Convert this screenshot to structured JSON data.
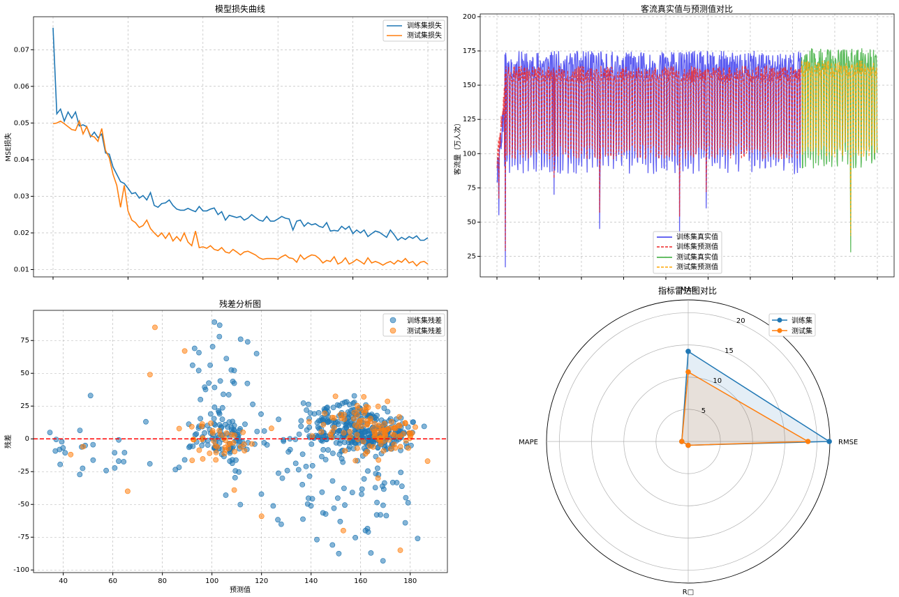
{
  "chart_data": [
    {
      "type": "line",
      "title": "模型损失曲线",
      "xlabel": "",
      "ylabel": "MSE损失",
      "xlim": [
        0,
        100
      ],
      "ylim": [
        0.008,
        0.079
      ],
      "x_ticks": [
        0,
        20,
        40,
        60,
        80,
        100
      ],
      "y_ticks": [
        0.01,
        0.02,
        0.03,
        0.04,
        0.05,
        0.06,
        0.07
      ],
      "y_tick_labels": [
        "0.01",
        "0.02",
        "0.03",
        "0.04",
        "0.05",
        "0.06",
        "0.07"
      ],
      "grid": true,
      "legend_position": "top-right",
      "series": [
        {
          "name": "训练集损失",
          "color": "#1f77b4",
          "values": [
            0.076,
            0.0525,
            0.0538,
            0.0505,
            0.053,
            0.0513,
            0.053,
            0.0492,
            0.0495,
            0.049,
            0.0462,
            0.0475,
            0.046,
            0.047,
            0.0418,
            0.0415,
            0.038,
            0.036,
            0.034,
            0.0335,
            0.0322,
            0.0307,
            0.031,
            0.0295,
            0.0302,
            0.029,
            0.031,
            0.0275,
            0.027,
            0.028,
            0.0282,
            0.029,
            0.0275,
            0.0265,
            0.0262,
            0.0262,
            0.0267,
            0.0262,
            0.0258,
            0.0272,
            0.026,
            0.026,
            0.0265,
            0.0268,
            0.025,
            0.0258,
            0.0235,
            0.0248,
            0.0245,
            0.0242,
            0.0245,
            0.0235,
            0.024,
            0.025,
            0.0242,
            0.0235,
            0.0232,
            0.0245,
            0.0232,
            0.0232,
            0.0238,
            0.0245,
            0.024,
            0.0238,
            0.0208,
            0.0232,
            0.0235,
            0.0218,
            0.0228,
            0.0222,
            0.0225,
            0.0218,
            0.0215,
            0.0228,
            0.0205,
            0.0207,
            0.0205,
            0.0218,
            0.021,
            0.0218,
            0.0198,
            0.0208,
            0.02,
            0.0208,
            0.019,
            0.0198,
            0.0205,
            0.0202,
            0.0195,
            0.0188,
            0.0208,
            0.0195,
            0.018,
            0.0188,
            0.0182,
            0.019,
            0.0185,
            0.0192,
            0.018,
            0.018,
            0.0187
          ]
        },
        {
          "name": "测试集损失",
          "color": "#ff7f0e",
          "values": [
            0.0498,
            0.05,
            0.0505,
            0.0498,
            0.049,
            0.0482,
            0.048,
            0.0505,
            0.047,
            0.049,
            0.0465,
            0.0462,
            0.045,
            0.0485,
            0.0425,
            0.0405,
            0.036,
            0.033,
            0.027,
            0.033,
            0.026,
            0.0235,
            0.0228,
            0.0215,
            0.022,
            0.0235,
            0.0212,
            0.02,
            0.019,
            0.02,
            0.0185,
            0.02,
            0.0178,
            0.019,
            0.0178,
            0.02,
            0.0175,
            0.0165,
            0.0205,
            0.016,
            0.0162,
            0.0158,
            0.0165,
            0.0155,
            0.0152,
            0.016,
            0.0148,
            0.0145,
            0.0155,
            0.0148,
            0.014,
            0.0148,
            0.015,
            0.0145,
            0.014,
            0.0132,
            0.0128,
            0.013,
            0.013,
            0.013,
            0.0128,
            0.0135,
            0.014,
            0.0132,
            0.013,
            0.012,
            0.014,
            0.0128,
            0.0135,
            0.014,
            0.0138,
            0.013,
            0.0118,
            0.0125,
            0.0122,
            0.0135,
            0.0115,
            0.012,
            0.0132,
            0.0115,
            0.012,
            0.0128,
            0.0122,
            0.0115,
            0.0132,
            0.0118,
            0.0122,
            0.0118,
            0.0112,
            0.0118,
            0.0122,
            0.0115,
            0.0125,
            0.012,
            0.013,
            0.0118,
            0.0122,
            0.011,
            0.012,
            0.0122,
            0.0115
          ]
        }
      ]
    },
    {
      "type": "line",
      "title": "客流真实值与预测值对比",
      "xlabel": "",
      "ylabel": "客流量（万人次）",
      "xlim": [
        0,
        1000
      ],
      "ylim": [
        10,
        202
      ],
      "y_ticks": [
        25,
        50,
        75,
        100,
        125,
        150,
        175,
        200
      ],
      "x_ticks": [
        0,
        111,
        222,
        333,
        444,
        555,
        666,
        777,
        888,
        1000
      ],
      "grid": true,
      "legend_position": "bottom-center",
      "train_end_index": 800,
      "series": [
        {
          "name": "训练集真实值",
          "color": "#3333ee",
          "style": "solid",
          "span": "train",
          "seed": 11,
          "high": 165,
          "low": 95,
          "noise": 10
        },
        {
          "name": "训练集预测值",
          "color": "#ee2222",
          "style": "dashed",
          "span": "train",
          "seed": 23,
          "high": 158,
          "low": 102,
          "noise": 6
        },
        {
          "name": "测试集真实值",
          "color": "#33aa33",
          "style": "solid",
          "span": "test",
          "seed": 37,
          "high": 168,
          "low": 98,
          "noise": 9
        },
        {
          "name": "测试集预测值",
          "color": "#ffa500",
          "style": "dashed",
          "span": "test",
          "seed": 41,
          "high": 162,
          "low": 103,
          "noise": 6
        }
      ],
      "events": [
        {
          "index": 5,
          "value": 55
        },
        {
          "index": 22,
          "value": 17
        },
        {
          "index": 150,
          "value": 70
        },
        {
          "index": 270,
          "value": 45
        },
        {
          "index": 480,
          "value": 42
        },
        {
          "index": 550,
          "value": 60
        },
        {
          "index": 930,
          "value": 28
        }
      ]
    },
    {
      "type": "scatter",
      "title": "残差分析图",
      "xlabel": "预测值",
      "ylabel": "残差",
      "xlim": [
        28,
        195
      ],
      "ylim": [
        -102,
        98
      ],
      "x_ticks": [
        40,
        60,
        80,
        100,
        120,
        140,
        160,
        180
      ],
      "y_ticks": [
        -100,
        -75,
        -50,
        -25,
        0,
        25,
        50,
        75
      ],
      "grid": true,
      "legend_position": "top-right",
      "reference_line": 0,
      "series": [
        {
          "name": "训练集残差",
          "color": "#1f77b4",
          "clusters": [
            {
              "cx": 103,
              "cy": 0,
              "sx": 7,
              "sy": 8,
              "n": 80
            },
            {
              "cx": 105,
              "cy": 20,
              "sx": 6,
              "sy": 30,
              "n": 45
            },
            {
              "cx": 155,
              "cy": 8,
              "sx": 9,
              "sy": 10,
              "n": 200
            },
            {
              "cx": 168,
              "cy": 2,
              "sx": 8,
              "sy": 6,
              "n": 150
            },
            {
              "cx": 160,
              "cy": -50,
              "sx": 12,
              "sy": 20,
              "n": 45
            },
            {
              "cx": 130,
              "cy": -15,
              "sx": 12,
              "sy": 25,
              "n": 30
            },
            {
              "cx": 55,
              "cy": -8,
              "sx": 12,
              "sy": 12,
              "n": 25
            }
          ],
          "points": [
            [
              51,
              33
            ],
            [
              101,
              89
            ],
            [
              103,
              78
            ],
            [
              93,
              69
            ],
            [
              118,
              65
            ],
            [
              169,
              -93
            ],
            [
              178,
              -64
            ],
            [
              183,
              -76
            ]
          ]
        },
        {
          "name": "测试集残差",
          "color": "#ff7f0e",
          "clusters": [
            {
              "cx": 103,
              "cy": -3,
              "sx": 6,
              "sy": 8,
              "n": 40
            },
            {
              "cx": 157,
              "cy": 10,
              "sx": 8,
              "sy": 10,
              "n": 60
            },
            {
              "cx": 172,
              "cy": 4,
              "sx": 6,
              "sy": 6,
              "n": 50
            }
          ],
          "points": [
            [
              77,
              85
            ],
            [
              89,
              67
            ],
            [
              75,
              49
            ],
            [
              66,
              -40
            ],
            [
              43,
              -12
            ],
            [
              48,
              -6
            ],
            [
              120,
              -59
            ],
            [
              167,
              -30
            ],
            [
              176,
              -85
            ],
            [
              187,
              -17
            ],
            [
              109,
              -39
            ],
            [
              124,
              8
            ],
            [
              153,
              -70
            ]
          ]
        }
      ]
    },
    {
      "type": "radar",
      "title": "指标雷达图对比",
      "axes": [
        "MAE",
        "RMSE",
        "R□",
        "MAPE"
      ],
      "r_max": 22,
      "r_ticks": [
        5,
        10,
        15,
        20
      ],
      "legend_position": "top-right",
      "series": [
        {
          "name": "训练集",
          "color": "#1f77b4",
          "values": [
            14.0,
            21.9,
            0.6,
            1.0
          ]
        },
        {
          "name": "测试集",
          "color": "#ff7f0e",
          "values": [
            10.8,
            18.6,
            0.6,
            1.0
          ]
        }
      ]
    }
  ]
}
